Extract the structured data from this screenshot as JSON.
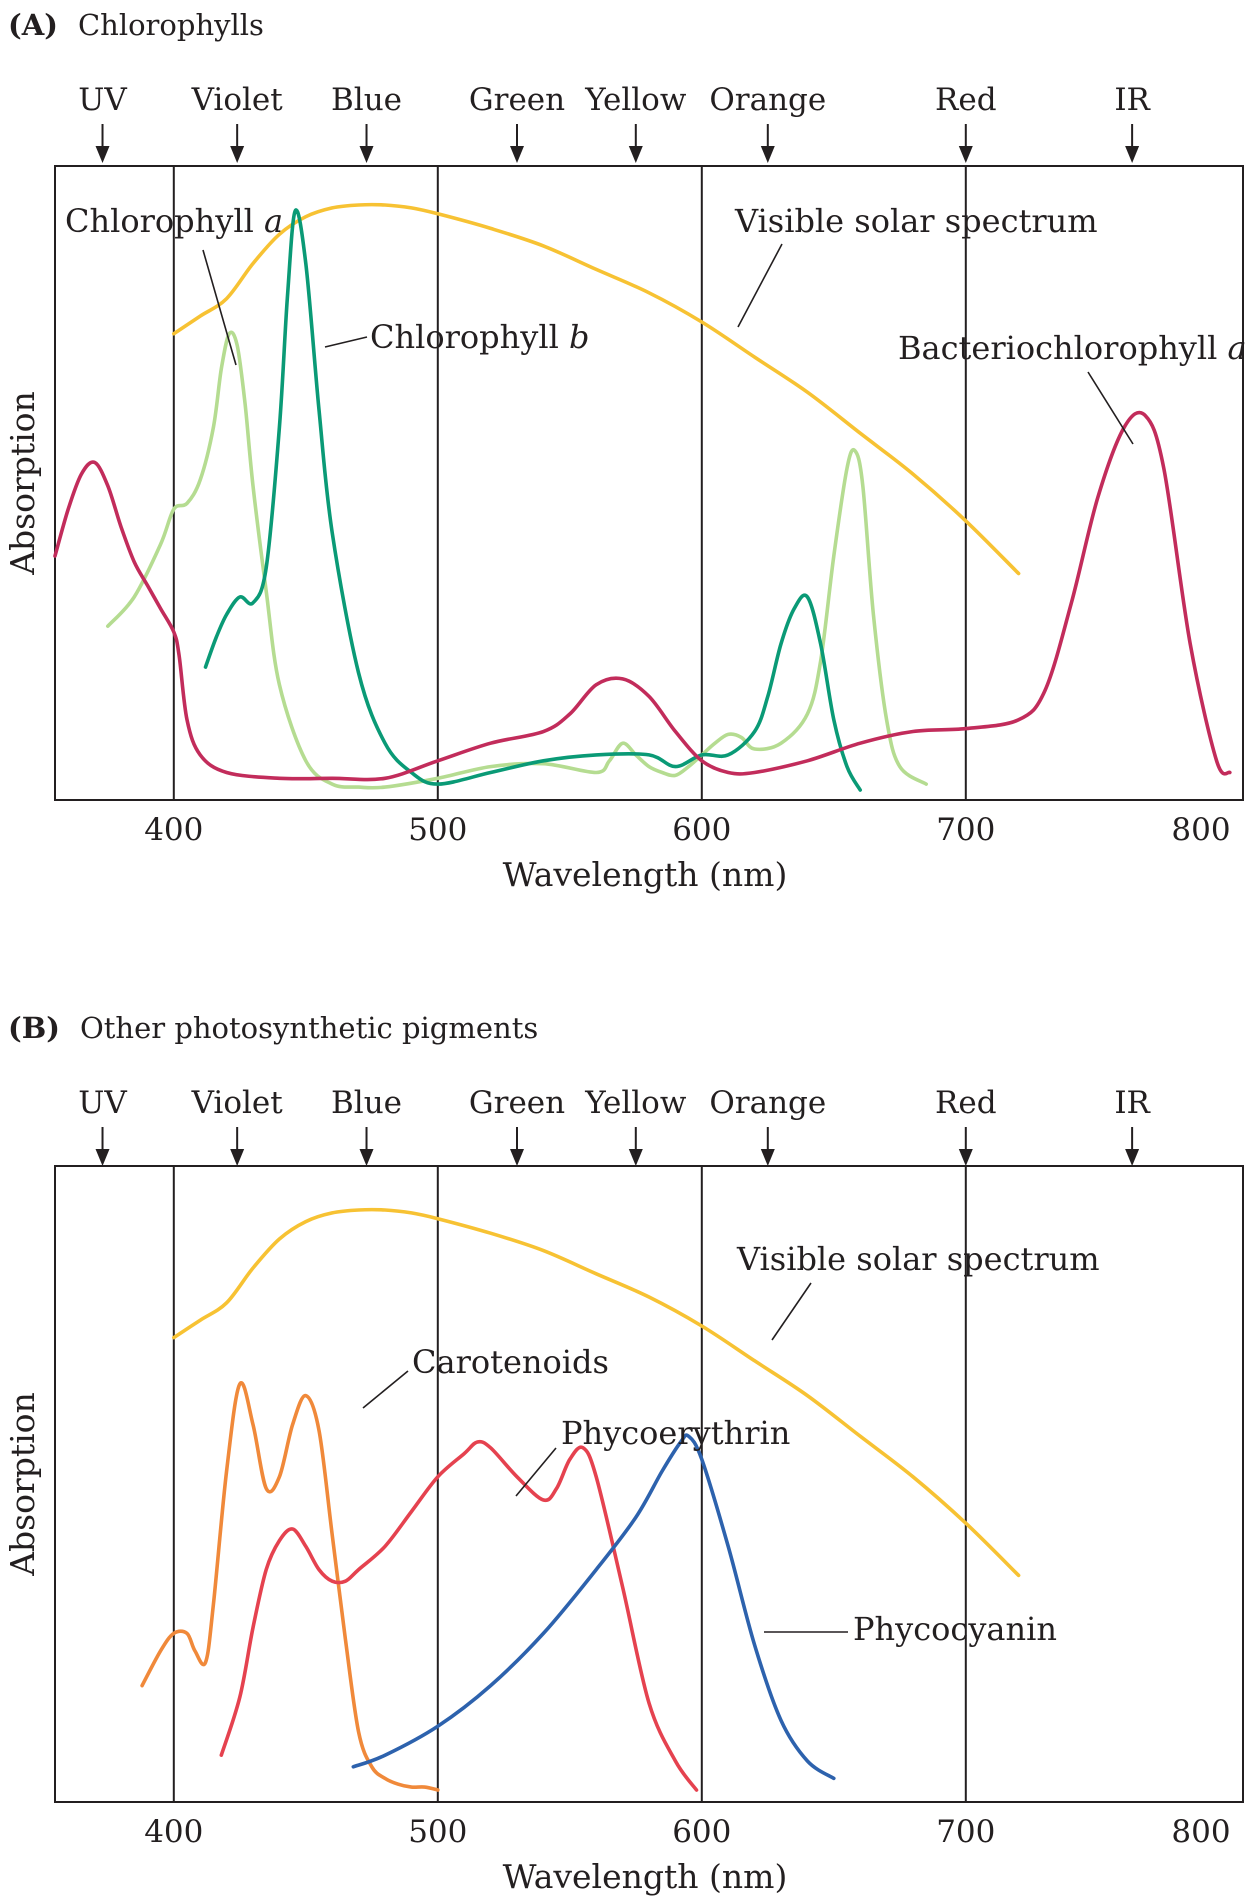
{
  "figure": {
    "colors": {
      "solar": "#f7c233",
      "chlorophyll_a": "#b5dc91",
      "chlorophyll_b": "#0a9a76",
      "bacteriochlorophyll_a": "#c22c5b",
      "carotenoids": "#f0893a",
      "phycoerythrin": "#e5424f",
      "phycocyanin": "#2d62ad"
    },
    "bands": [
      {
        "label": "UV",
        "x": 373
      },
      {
        "label": "Violet",
        "x": 424
      },
      {
        "label": "Blue",
        "x": 473
      },
      {
        "label": "Green",
        "x": 530
      },
      {
        "label": "Yellow",
        "x": 575
      },
      {
        "label": "Orange",
        "x": 625
      },
      {
        "label": "Red",
        "x": 700
      },
      {
        "label": "IR",
        "x": 763
      }
    ]
  },
  "chart_data": [
    {
      "type": "line",
      "panel_letter": "(A)",
      "title": "Chlorophylls",
      "xlabel": "Wavelength (nm)",
      "ylabel": "Absorption",
      "xlim": [
        355,
        805
      ],
      "ylim": [
        0,
        100
      ],
      "xticks": [
        400,
        500,
        600,
        700,
        800
      ],
      "vlines": [
        400,
        500,
        600,
        700
      ],
      "series": [
        {
          "name": "Visible solar spectrum",
          "color_key": "solar",
          "x": [
            400,
            410,
            420,
            430,
            440,
            450,
            460,
            470,
            480,
            490,
            500,
            520,
            540,
            560,
            580,
            600,
            620,
            640,
            660,
            680,
            700,
            720
          ],
          "y": [
            78,
            81,
            84,
            90,
            95,
            98,
            99.5,
            100,
            100,
            99.5,
            98.5,
            96,
            93,
            89,
            85,
            80,
            74,
            68,
            61,
            54,
            46,
            37
          ]
        },
        {
          "name": "Chlorophyll a",
          "color_key": "chlorophyll_a",
          "x": [
            375,
            385,
            395,
            400,
            405,
            410,
            415,
            418,
            421,
            424,
            427,
            430,
            435,
            440,
            450,
            460,
            470,
            480,
            500,
            520,
            540,
            560,
            565,
            570,
            575,
            580,
            585,
            590,
            595,
            600,
            605,
            610,
            615,
            620,
            630,
            640,
            645,
            650,
            655,
            658,
            661,
            665,
            670,
            675,
            685
          ],
          "y": [
            28,
            33,
            42,
            48,
            49,
            53,
            62,
            72,
            78,
            76,
            66,
            52,
            34,
            18,
            5,
            1,
            0.5,
            0.5,
            2,
            4,
            4.5,
            3,
            5,
            8,
            6,
            4,
            3,
            2.5,
            4,
            6,
            8,
            9.5,
            9,
            7,
            8,
            13,
            22,
            40,
            55,
            58,
            52,
            30,
            12,
            4,
            1
          ]
        },
        {
          "name": "Chlorophyll b",
          "color_key": "chlorophyll_b",
          "x": [
            412,
            416,
            420,
            425,
            430,
            435,
            440,
            443,
            446,
            450,
            455,
            460,
            470,
            480,
            490,
            500,
            520,
            540,
            560,
            580,
            590,
            600,
            610,
            620,
            625,
            630,
            635,
            640,
            645,
            650,
            655,
            660
          ],
          "y": [
            21,
            26,
            30,
            33,
            32,
            38,
            62,
            84,
            99,
            90,
            65,
            44,
            20,
            8,
            3,
            1,
            3,
            5,
            6,
            6,
            4,
            6,
            6,
            10,
            16,
            25,
            31,
            33,
            25,
            12,
            4,
            0
          ]
        },
        {
          "name": "Bacteriochlorophyll a",
          "color_key": "bacteriochlorophyll_a",
          "x": [
            355,
            360,
            365,
            370,
            375,
            380,
            385,
            390,
            395,
            400,
            402,
            405,
            410,
            420,
            440,
            460,
            480,
            500,
            520,
            540,
            550,
            560,
            570,
            580,
            590,
            600,
            610,
            620,
            640,
            660,
            680,
            700,
            720,
            730,
            740,
            750,
            760,
            768,
            775,
            785,
            795,
            800
          ],
          "y": [
            40,
            48,
            54,
            56,
            52,
            45,
            39,
            35,
            31,
            27,
            23,
            12,
            6,
            3,
            2,
            2,
            2,
            5,
            8,
            10,
            13,
            18,
            19,
            16,
            10,
            5,
            3,
            3,
            5,
            8,
            10,
            10.5,
            12,
            17,
            32,
            50,
            62,
            64,
            55,
            25,
            5,
            3
          ]
        }
      ],
      "annotations": [
        {
          "text": "Chlorophyll",
          "italic": "a",
          "series": 1
        },
        {
          "text": "Chlorophyll",
          "italic": "b",
          "series": 2
        },
        {
          "text": "Visible solar spectrum",
          "series": 0
        },
        {
          "text": "Bacteriochlorophyll",
          "italic": "a",
          "series": 3
        }
      ]
    },
    {
      "type": "line",
      "panel_letter": "(B)",
      "title": "Other photosynthetic pigments",
      "xlabel": "Wavelength (nm)",
      "ylabel": "Absorption",
      "xlim": [
        355,
        805
      ],
      "ylim": [
        0,
        100
      ],
      "xticks": [
        400,
        500,
        600,
        700,
        800
      ],
      "vlines": [
        400,
        500,
        600,
        700
      ],
      "series": [
        {
          "name": "Visible solar spectrum",
          "color_key": "solar",
          "x": [
            400,
            410,
            420,
            430,
            440,
            450,
            460,
            470,
            480,
            490,
            500,
            520,
            540,
            560,
            580,
            600,
            620,
            640,
            660,
            680,
            700,
            720
          ],
          "y": [
            78,
            81,
            84,
            90,
            95,
            98,
            99.5,
            100,
            100,
            99.5,
            98.5,
            96,
            93,
            89,
            85,
            80,
            74,
            68,
            61,
            54,
            46,
            37
          ]
        },
        {
          "name": "Carotenoids",
          "color_key": "carotenoids",
          "x": [
            388,
            395,
            400,
            405,
            408,
            412,
            415,
            420,
            425,
            430,
            435,
            440,
            445,
            450,
            455,
            460,
            465,
            470,
            475,
            480,
            485,
            490,
            495,
            500
          ],
          "y": [
            18,
            24,
            27,
            27,
            24,
            22,
            32,
            55,
            70,
            63,
            52,
            54,
            63,
            68,
            62,
            44,
            26,
            10,
            4,
            2,
            1,
            0.5,
            0.5,
            0
          ]
        },
        {
          "name": "Phycoerythrin",
          "color_key": "phycoerythrin",
          "x": [
            418,
            425,
            430,
            435,
            440,
            445,
            450,
            455,
            460,
            465,
            470,
            480,
            490,
            500,
            510,
            515,
            520,
            530,
            540,
            545,
            550,
            555,
            560,
            570,
            580,
            590,
            598
          ],
          "y": [
            6,
            16,
            28,
            38,
            43,
            45,
            42,
            38,
            36,
            36,
            38,
            42,
            48,
            54,
            58,
            60,
            59,
            54,
            50,
            52,
            57,
            59,
            54,
            35,
            15,
            5,
            0
          ]
        },
        {
          "name": "Phycocyanin",
          "color_key": "phycocyanin",
          "x": [
            468,
            480,
            500,
            520,
            540,
            560,
            575,
            585,
            592,
            595,
            600,
            610,
            620,
            630,
            640,
            650
          ],
          "y": [
            4,
            6,
            11,
            18,
            27,
            38,
            47,
            55,
            60,
            61,
            57,
            42,
            25,
            12,
            5,
            2
          ]
        }
      ],
      "annotations": [
        {
          "text": "Visible solar spectrum",
          "series": 0
        },
        {
          "text": "Carotenoids",
          "series": 1
        },
        {
          "text": "Phycoerythrin",
          "series": 2
        },
        {
          "text": "Phycocyanin",
          "series": 3
        }
      ]
    }
  ]
}
